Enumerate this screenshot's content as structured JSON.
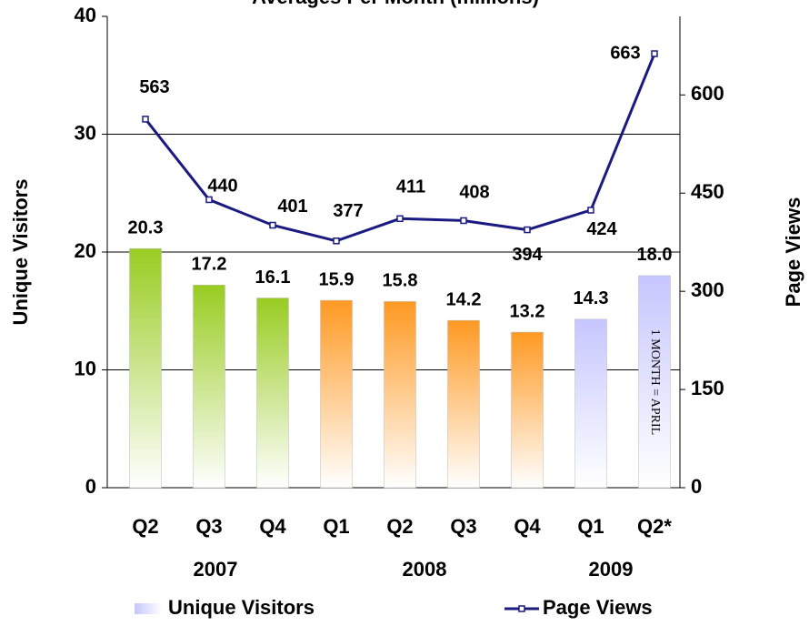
{
  "chart_data": {
    "type": "bar_line",
    "title": "Averages Per Month (millions)",
    "y_label": "Unique Visitors",
    "y2_label": "Page Views",
    "categories": [
      "Q2",
      "Q3",
      "Q4",
      "Q1",
      "Q2",
      "Q3",
      "Q4",
      "Q1",
      "Q2*"
    ],
    "year_labels": [
      "2007",
      "2008",
      "2009"
    ],
    "annotation": "1 MONTH = APRIL",
    "ylim": [
      0,
      40
    ],
    "yticks": [
      0,
      10,
      20,
      30,
      40
    ],
    "y2lim": [
      0,
      720
    ],
    "y2ticks": [
      0,
      150,
      300,
      450,
      600
    ],
    "grid": true,
    "series": [
      {
        "name": "Unique Visitors",
        "type": "bar",
        "color": "#c6c6ff",
        "colors": [
          "#99cc22",
          "#99cc22",
          "#99cc22",
          "#ff9922",
          "#ff9922",
          "#ff9922",
          "#ff9922",
          "#c6c6ff",
          "#c6c6ff"
        ],
        "values": [
          20.3,
          17.2,
          16.1,
          15.9,
          15.8,
          14.2,
          13.2,
          14.3,
          18.0
        ],
        "value_labels": [
          "20.3",
          "17.2",
          "16.1",
          "15.9",
          "15.8",
          "14.2",
          "13.2",
          "14.3",
          "18.0"
        ]
      },
      {
        "name": "Page Views",
        "type": "line",
        "axis": "y2",
        "color": "#1a1a80",
        "values": [
          563,
          440,
          401,
          377,
          411,
          408,
          394,
          424,
          663
        ]
      }
    ]
  }
}
